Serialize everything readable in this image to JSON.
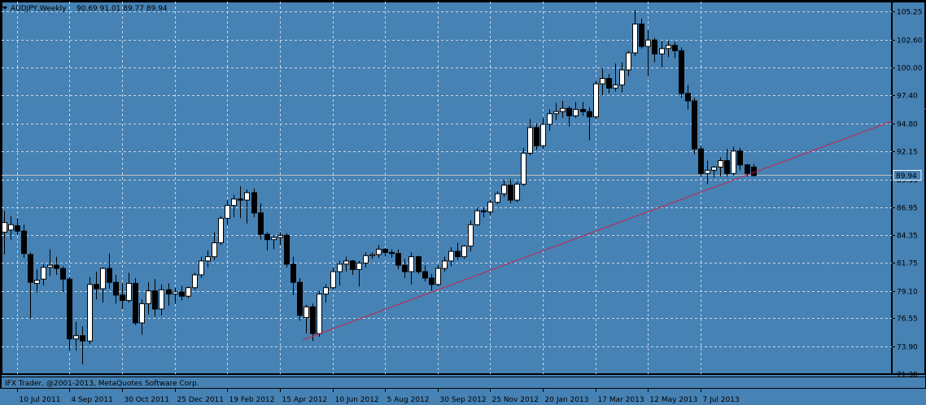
{
  "window": {
    "symbol_title": "AUDJPY,Weekly",
    "ohlc_text": "90.69 91.01 89.77 89.94",
    "copyright": "IFX Trader, @2001-2013, MetaQuotes Software Corp."
  },
  "colors": {
    "background": "#4682b4",
    "grid": "#c8d6e6",
    "bull_body": "#ffffff",
    "bear_body": "#000000",
    "wick": "#000000",
    "trendline": "#c8224a",
    "bid_line": "#c0c0c0",
    "price_label_bg": "#4682b4"
  },
  "chart_data": {
    "type": "candlestick",
    "timeframe": "Weekly",
    "symbol": "AUDJPY",
    "current_price": 89.94,
    "current_price_label": "89.94",
    "ylim": [
      71.3,
      106.2
    ],
    "y_ticks": [
      "105.25",
      "102.60",
      "100.00",
      "97.40",
      "94.80",
      "92.15",
      "89.55",
      "86.95",
      "84.35",
      "81.75",
      "79.10",
      "76.55",
      "73.90",
      "71.30"
    ],
    "x_ticks": [
      "10 Jul 2011",
      "4 Sep 2011",
      "30 Oct 2011",
      "25 Dec 2011",
      "19 Feb 2012",
      "15 Apr 2012",
      "10 Jun 2012",
      "5 Aug 2012",
      "30 Sep 2012",
      "25 Nov 2012",
      "20 Jan 2013",
      "17 Mar 2013",
      "12 May 2013",
      "7 Jul 2013"
    ],
    "x_tick_bars": [
      2,
      10,
      18,
      26,
      34,
      42,
      50,
      58,
      66,
      74,
      82,
      90,
      98,
      106
    ],
    "trendline": {
      "start_bar": 45.5,
      "start_price": 74.5,
      "end_bar": 150,
      "end_price": 98.4
    },
    "candles": [
      {
        "o": 84.6,
        "h": 86.6,
        "l": 82.5,
        "c": 85.5
      },
      {
        "o": 84.8,
        "h": 86.1,
        "l": 83.9,
        "c": 85.3
      },
      {
        "o": 85.2,
        "h": 85.9,
        "l": 84.3,
        "c": 84.7
      },
      {
        "o": 84.7,
        "h": 85.3,
        "l": 82.2,
        "c": 82.6
      },
      {
        "o": 82.5,
        "h": 82.7,
        "l": 76.5,
        "c": 79.9
      },
      {
        "o": 79.8,
        "h": 81.1,
        "l": 78.9,
        "c": 80.1
      },
      {
        "o": 80.2,
        "h": 81.6,
        "l": 79.6,
        "c": 81.3
      },
      {
        "o": 81.3,
        "h": 83.0,
        "l": 80.5,
        "c": 81.5
      },
      {
        "o": 81.5,
        "h": 82.3,
        "l": 80.6,
        "c": 81.2
      },
      {
        "o": 81.2,
        "h": 81.4,
        "l": 79.0,
        "c": 80.2
      },
      {
        "o": 80.2,
        "h": 80.4,
        "l": 73.5,
        "c": 74.6
      },
      {
        "o": 74.6,
        "h": 76.2,
        "l": 73.5,
        "c": 74.9
      },
      {
        "o": 74.9,
        "h": 75.8,
        "l": 72.2,
        "c": 74.4
      },
      {
        "o": 74.4,
        "h": 80.4,
        "l": 74.1,
        "c": 79.7
      },
      {
        "o": 79.7,
        "h": 80.9,
        "l": 78.3,
        "c": 79.3
      },
      {
        "o": 79.3,
        "h": 81.3,
        "l": 78.0,
        "c": 81.2
      },
      {
        "o": 81.2,
        "h": 82.6,
        "l": 79.3,
        "c": 79.9
      },
      {
        "o": 79.9,
        "h": 80.6,
        "l": 77.9,
        "c": 78.7
      },
      {
        "o": 78.7,
        "h": 79.8,
        "l": 77.4,
        "c": 78.2
      },
      {
        "o": 78.2,
        "h": 80.8,
        "l": 78.0,
        "c": 79.8
      },
      {
        "o": 79.8,
        "h": 80.3,
        "l": 75.9,
        "c": 76.1
      },
      {
        "o": 76.1,
        "h": 78.3,
        "l": 75.0,
        "c": 77.9
      },
      {
        "o": 77.9,
        "h": 79.9,
        "l": 76.9,
        "c": 79.1
      },
      {
        "o": 79.1,
        "h": 80.2,
        "l": 76.7,
        "c": 77.4
      },
      {
        "o": 77.4,
        "h": 79.7,
        "l": 76.8,
        "c": 79.2
      },
      {
        "o": 79.2,
        "h": 79.8,
        "l": 77.7,
        "c": 78.8
      },
      {
        "o": 78.8,
        "h": 79.4,
        "l": 77.9,
        "c": 79.0
      },
      {
        "o": 79.0,
        "h": 79.6,
        "l": 78.2,
        "c": 78.6
      },
      {
        "o": 78.6,
        "h": 79.5,
        "l": 78.4,
        "c": 79.4
      },
      {
        "o": 79.4,
        "h": 80.8,
        "l": 79.2,
        "c": 80.6
      },
      {
        "o": 80.6,
        "h": 82.3,
        "l": 80.3,
        "c": 81.9
      },
      {
        "o": 81.9,
        "h": 82.9,
        "l": 81.3,
        "c": 82.3
      },
      {
        "o": 82.3,
        "h": 84.6,
        "l": 82.0,
        "c": 83.6
      },
      {
        "o": 83.6,
        "h": 86.1,
        "l": 83.4,
        "c": 85.9
      },
      {
        "o": 85.9,
        "h": 87.6,
        "l": 85.3,
        "c": 87.1
      },
      {
        "o": 87.1,
        "h": 88.1,
        "l": 86.0,
        "c": 87.7
      },
      {
        "o": 87.7,
        "h": 88.9,
        "l": 85.9,
        "c": 87.6
      },
      {
        "o": 87.6,
        "h": 88.6,
        "l": 85.4,
        "c": 88.3
      },
      {
        "o": 88.3,
        "h": 88.7,
        "l": 86.0,
        "c": 86.4
      },
      {
        "o": 86.4,
        "h": 87.3,
        "l": 83.9,
        "c": 84.4
      },
      {
        "o": 84.4,
        "h": 84.6,
        "l": 82.9,
        "c": 83.9
      },
      {
        "o": 83.9,
        "h": 84.3,
        "l": 83.0,
        "c": 84.1
      },
      {
        "o": 84.1,
        "h": 84.6,
        "l": 83.4,
        "c": 84.3
      },
      {
        "o": 84.3,
        "h": 84.5,
        "l": 81.3,
        "c": 81.6
      },
      {
        "o": 81.6,
        "h": 82.3,
        "l": 78.7,
        "c": 79.9
      },
      {
        "o": 79.9,
        "h": 80.3,
        "l": 76.3,
        "c": 76.8
      },
      {
        "o": 76.6,
        "h": 77.8,
        "l": 75.1,
        "c": 77.6
      },
      {
        "o": 77.6,
        "h": 77.9,
        "l": 74.4,
        "c": 75.1
      },
      {
        "o": 75.1,
        "h": 79.1,
        "l": 74.8,
        "c": 78.8
      },
      {
        "o": 78.8,
        "h": 79.7,
        "l": 78.0,
        "c": 79.4
      },
      {
        "o": 79.4,
        "h": 81.3,
        "l": 79.2,
        "c": 80.9
      },
      {
        "o": 80.9,
        "h": 81.9,
        "l": 79.6,
        "c": 81.6
      },
      {
        "o": 81.6,
        "h": 82.3,
        "l": 80.9,
        "c": 81.9
      },
      {
        "o": 81.9,
        "h": 82.0,
        "l": 80.6,
        "c": 81.1
      },
      {
        "o": 81.1,
        "h": 81.9,
        "l": 79.5,
        "c": 81.7
      },
      {
        "o": 81.7,
        "h": 82.7,
        "l": 81.3,
        "c": 82.4
      },
      {
        "o": 82.4,
        "h": 82.7,
        "l": 82.1,
        "c": 82.5
      },
      {
        "o": 82.5,
        "h": 83.4,
        "l": 82.2,
        "c": 83.0
      },
      {
        "o": 83.0,
        "h": 83.1,
        "l": 82.3,
        "c": 82.7
      },
      {
        "o": 82.7,
        "h": 83.0,
        "l": 82.2,
        "c": 82.6
      },
      {
        "o": 82.6,
        "h": 83.0,
        "l": 81.1,
        "c": 81.5
      },
      {
        "o": 81.5,
        "h": 82.1,
        "l": 80.3,
        "c": 80.9
      },
      {
        "o": 80.9,
        "h": 82.7,
        "l": 79.7,
        "c": 82.3
      },
      {
        "o": 82.3,
        "h": 82.4,
        "l": 80.7,
        "c": 80.9
      },
      {
        "o": 80.9,
        "h": 81.5,
        "l": 80.0,
        "c": 80.3
      },
      {
        "o": 80.3,
        "h": 80.7,
        "l": 79.1,
        "c": 79.7
      },
      {
        "o": 79.7,
        "h": 81.5,
        "l": 79.5,
        "c": 81.2
      },
      {
        "o": 81.2,
        "h": 82.3,
        "l": 80.9,
        "c": 81.9
      },
      {
        "o": 81.9,
        "h": 83.2,
        "l": 81.4,
        "c": 82.8
      },
      {
        "o": 82.8,
        "h": 83.6,
        "l": 82.0,
        "c": 82.3
      },
      {
        "o": 82.3,
        "h": 83.4,
        "l": 82.1,
        "c": 83.3
      },
      {
        "o": 83.3,
        "h": 85.7,
        "l": 82.8,
        "c": 85.3
      },
      {
        "o": 85.3,
        "h": 86.9,
        "l": 85.2,
        "c": 86.6
      },
      {
        "o": 86.6,
        "h": 86.9,
        "l": 86.0,
        "c": 86.5
      },
      {
        "o": 86.5,
        "h": 87.6,
        "l": 86.2,
        "c": 87.4
      },
      {
        "o": 87.4,
        "h": 88.4,
        "l": 87.2,
        "c": 88.2
      },
      {
        "o": 88.2,
        "h": 89.5,
        "l": 87.9,
        "c": 89.0
      },
      {
        "o": 89.0,
        "h": 89.6,
        "l": 87.3,
        "c": 87.6
      },
      {
        "o": 87.6,
        "h": 89.3,
        "l": 87.4,
        "c": 89.1
      },
      {
        "o": 89.1,
        "h": 92.5,
        "l": 88.9,
        "c": 92.0
      },
      {
        "o": 92.0,
        "h": 95.2,
        "l": 91.8,
        "c": 94.4
      },
      {
        "o": 94.4,
        "h": 94.8,
        "l": 92.3,
        "c": 92.7
      },
      {
        "o": 92.7,
        "h": 95.3,
        "l": 92.4,
        "c": 94.7
      },
      {
        "o": 94.7,
        "h": 96.1,
        "l": 94.1,
        "c": 95.7
      },
      {
        "o": 95.7,
        "h": 96.7,
        "l": 95.1,
        "c": 95.9
      },
      {
        "o": 95.9,
        "h": 96.9,
        "l": 95.3,
        "c": 96.2
      },
      {
        "o": 96.2,
        "h": 96.4,
        "l": 94.5,
        "c": 95.5
      },
      {
        "o": 95.5,
        "h": 96.8,
        "l": 95.3,
        "c": 96.1
      },
      {
        "o": 96.1,
        "h": 96.8,
        "l": 95.5,
        "c": 95.9
      },
      {
        "o": 95.9,
        "h": 96.3,
        "l": 93.2,
        "c": 95.4
      },
      {
        "o": 95.4,
        "h": 98.8,
        "l": 95.2,
        "c": 98.5
      },
      {
        "o": 98.5,
        "h": 100.0,
        "l": 97.4,
        "c": 99.0
      },
      {
        "o": 99.0,
        "h": 99.4,
        "l": 97.6,
        "c": 98.1
      },
      {
        "o": 98.1,
        "h": 100.4,
        "l": 97.8,
        "c": 98.4
      },
      {
        "o": 98.4,
        "h": 100.5,
        "l": 97.7,
        "c": 99.8
      },
      {
        "o": 99.8,
        "h": 101.6,
        "l": 99.2,
        "c": 101.4
      },
      {
        "o": 101.4,
        "h": 105.4,
        "l": 101.1,
        "c": 104.1
      },
      {
        "o": 104.1,
        "h": 104.6,
        "l": 101.8,
        "c": 102.0
      },
      {
        "o": 102.0,
        "h": 103.5,
        "l": 99.2,
        "c": 102.6
      },
      {
        "o": 102.6,
        "h": 102.8,
        "l": 100.5,
        "c": 101.3
      },
      {
        "o": 101.3,
        "h": 102.5,
        "l": 100.0,
        "c": 101.8
      },
      {
        "o": 101.8,
        "h": 102.5,
        "l": 101.0,
        "c": 102.1
      },
      {
        "o": 102.1,
        "h": 102.4,
        "l": 100.9,
        "c": 101.6
      },
      {
        "o": 101.6,
        "h": 101.9,
        "l": 97.2,
        "c": 97.6
      },
      {
        "o": 97.6,
        "h": 98.4,
        "l": 96.1,
        "c": 96.9
      },
      {
        "o": 96.9,
        "h": 97.2,
        "l": 91.9,
        "c": 92.4
      },
      {
        "o": 92.4,
        "h": 92.7,
        "l": 89.8,
        "c": 90.1
      },
      {
        "o": 90.1,
        "h": 91.3,
        "l": 89.1,
        "c": 90.4
      },
      {
        "o": 90.4,
        "h": 90.8,
        "l": 89.7,
        "c": 90.7
      },
      {
        "o": 90.7,
        "h": 91.6,
        "l": 89.8,
        "c": 91.3
      },
      {
        "o": 91.3,
        "h": 92.4,
        "l": 89.8,
        "c": 90.1
      },
      {
        "o": 90.1,
        "h": 92.6,
        "l": 89.9,
        "c": 92.2
      },
      {
        "o": 92.2,
        "h": 92.5,
        "l": 90.4,
        "c": 90.9
      },
      {
        "o": 90.9,
        "h": 91.0,
        "l": 89.8,
        "c": 90.1
      },
      {
        "o": 90.7,
        "h": 91.0,
        "l": 89.8,
        "c": 89.9
      }
    ]
  }
}
